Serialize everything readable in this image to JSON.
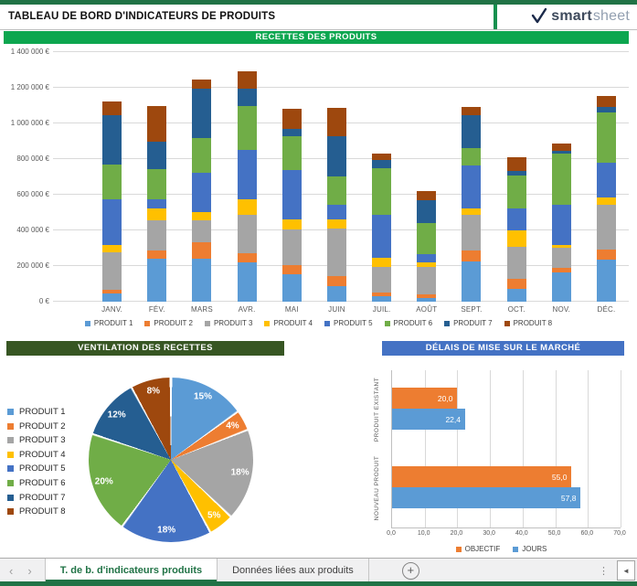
{
  "header": {
    "title": "TABLEAU DE BORD D'INDICATEURS DE PRODUITS",
    "logo": {
      "smart": "smart",
      "sheet": "sheet"
    }
  },
  "colors": {
    "strip_green": "#217346",
    "banner_green": "#0da64f",
    "banner_dark_green": "#375623",
    "banner_blue": "#4472c4"
  },
  "chart_data": [
    {
      "id": "recettes",
      "type": "bar",
      "stacked": true,
      "title": "RECETTES DES PRODUITS",
      "categories": [
        "JANV.",
        "FÉV.",
        "MARS",
        "AVR.",
        "MAI",
        "JUIN",
        "JUIL.",
        "AOÛT",
        "SEPT.",
        "OCT.",
        "NOV.",
        "DÉC."
      ],
      "series": [
        {
          "name": "PRODUIT 1",
          "color": "#5B9BD5",
          "values": [
            45000,
            240000,
            240000,
            220000,
            155000,
            85000,
            30000,
            20000,
            225000,
            70000,
            165000,
            235000
          ]
        },
        {
          "name": "PRODUIT 2",
          "color": "#ED7D31",
          "values": [
            20000,
            45000,
            95000,
            50000,
            50000,
            60000,
            20000,
            20000,
            60000,
            60000,
            25000,
            55000
          ]
        },
        {
          "name": "PRODUIT 3",
          "color": "#A5A5A5",
          "values": [
            210000,
            170000,
            120000,
            215000,
            200000,
            265000,
            145000,
            155000,
            200000,
            180000,
            115000,
            255000
          ]
        },
        {
          "name": "PRODUIT 4",
          "color": "#FFC000",
          "values": [
            45000,
            70000,
            50000,
            90000,
            55000,
            50000,
            50000,
            25000,
            40000,
            90000,
            12000,
            40000
          ]
        },
        {
          "name": "PRODUIT 5",
          "color": "#4472C4",
          "values": [
            255000,
            50000,
            220000,
            275000,
            280000,
            85000,
            240000,
            45000,
            240000,
            125000,
            228000,
            195000
          ]
        },
        {
          "name": "PRODUIT 6",
          "color": "#70AD47",
          "values": [
            195000,
            170000,
            195000,
            250000,
            190000,
            160000,
            265000,
            175000,
            95000,
            185000,
            285000,
            280000
          ]
        },
        {
          "name": "PRODUIT 7",
          "color": "#255E91",
          "values": [
            275000,
            155000,
            275000,
            95000,
            40000,
            225000,
            45000,
            130000,
            185000,
            25000,
            15000,
            35000
          ]
        },
        {
          "name": "PRODUIT 8",
          "color": "#9E480E",
          "values": [
            80000,
            200000,
            50000,
            100000,
            110000,
            155000,
            35000,
            50000,
            50000,
            75000,
            45000,
            60000
          ]
        }
      ],
      "ylim": [
        0,
        1400000
      ],
      "y_ticks": [
        "0 €",
        "200 000 €",
        "400 000 €",
        "600 000 €",
        "800 000 €",
        "1 000 000 €",
        "1 200 000 €",
        "1 400 000 €"
      ],
      "grid": true,
      "legend_position": "bottom"
    },
    {
      "id": "ventilation",
      "type": "pie",
      "title": "VENTILATION DES RECETTES",
      "labels": [
        "PRODUIT 1",
        "PRODUIT 2",
        "PRODUIT 3",
        "PRODUIT 4",
        "PRODUIT 5",
        "PRODUIT 6",
        "PRODUIT 7",
        "PRODUIT 8"
      ],
      "values_pct": [
        15,
        4,
        18,
        5,
        18,
        20,
        12,
        8
      ],
      "colors": [
        "#5B9BD5",
        "#ED7D31",
        "#A5A5A5",
        "#FFC000",
        "#4472C4",
        "#70AD47",
        "#255E91",
        "#9E480E"
      ],
      "start_angle_deg": 0,
      "clockwise": true,
      "legend_position": "left"
    },
    {
      "id": "delais",
      "type": "bar",
      "orientation": "horizontal",
      "title": "DÉLAIS DE MISE SUR LE MARCHÉ",
      "categories": [
        "PRODUIT EXISTANT",
        "NOUVEAU PRODUIT"
      ],
      "series": [
        {
          "name": "OBJECTIF",
          "color": "#ED7D31",
          "values": [
            20.0,
            55.0
          ],
          "value_labels": [
            "20,0",
            "55,0"
          ]
        },
        {
          "name": "JOURS",
          "color": "#5B9BD5",
          "values": [
            22.4,
            57.8
          ],
          "value_labels": [
            "22,4",
            "57,8"
          ]
        }
      ],
      "xlim": [
        0,
        70
      ],
      "x_ticks": [
        "0,0",
        "10,0",
        "20,0",
        "30,0",
        "40,0",
        "50,0",
        "60,0",
        "70,0"
      ],
      "grid": true,
      "legend_position": "bottom"
    }
  ],
  "sheet_tabs": {
    "tabs": [
      {
        "label": "T. de b. d'indicateurs produits",
        "active": true
      },
      {
        "label": "Données liées aux produits",
        "active": false
      }
    ],
    "icons": {
      "nav_left": "‹",
      "nav_right": "›",
      "add_sheet": "+",
      "more_dots": "⋮",
      "scroll_left": "◄"
    }
  }
}
